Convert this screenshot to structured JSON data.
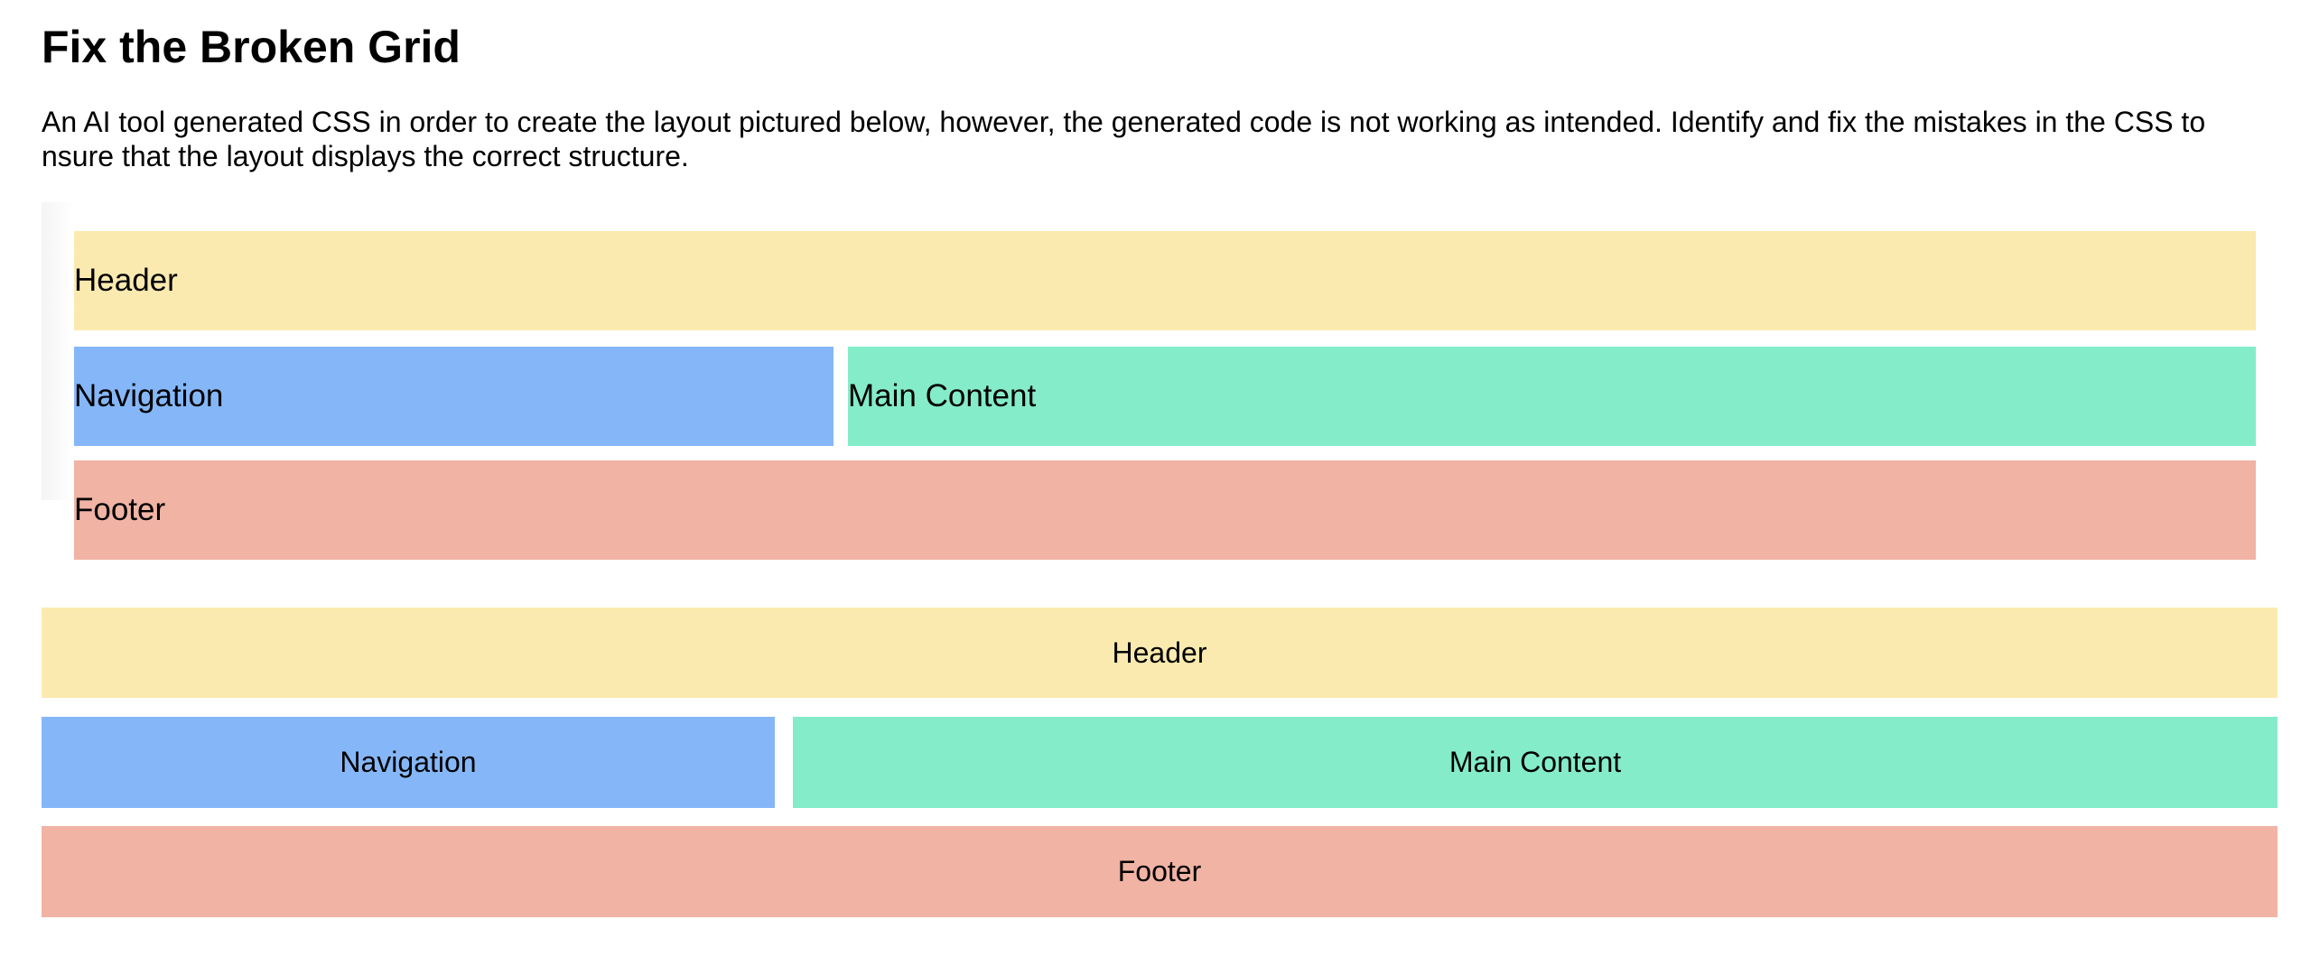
{
  "page": {
    "title": "Fix the Broken Grid",
    "intro": "An AI tool generated CSS in order to create the layout pictured below, however, the generated code is not working as intended. Identify and fix the mistakes in the CSS to nsure that the layout displays the correct structure."
  },
  "pictured_layout": {
    "header": "Header",
    "navigation": "Navigation",
    "main": "Main Content",
    "footer": "Footer"
  },
  "rendered_layout": {
    "header": "Header",
    "navigation": "Navigation",
    "main": "Main Content",
    "footer": "Footer"
  },
  "colors": {
    "header": "#fbeaaf",
    "navigation": "#85b7f8",
    "main": "#84ecc8",
    "footer": "#f0b3a4"
  }
}
